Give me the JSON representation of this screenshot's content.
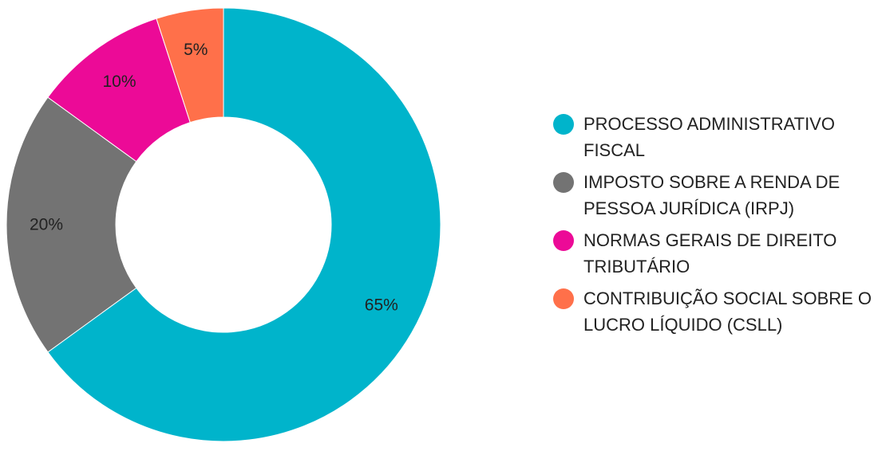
{
  "chart_data": {
    "type": "pie",
    "donut": true,
    "categories": [
      "PROCESSO ADMINISTRATIVO FISCAL",
      "IMPOSTO SOBRE A RENDA DE PESSOA JURÍDICA (IRPJ)",
      "NORMAS GERAIS DE DIREITO TRIBUTÁRIO",
      "CONTRIBUIÇÃO SOCIAL SOBRE O LUCRO LÍQUIDO (CSLL)"
    ],
    "values": [
      65,
      20,
      10,
      5
    ],
    "data_labels": [
      "65%",
      "20%",
      "10%",
      "5%"
    ],
    "colors": [
      "#00B4CB",
      "#737373",
      "#EC0A97",
      "#FF704A"
    ],
    "legend_placement": "right",
    "title": "",
    "grid": false
  }
}
